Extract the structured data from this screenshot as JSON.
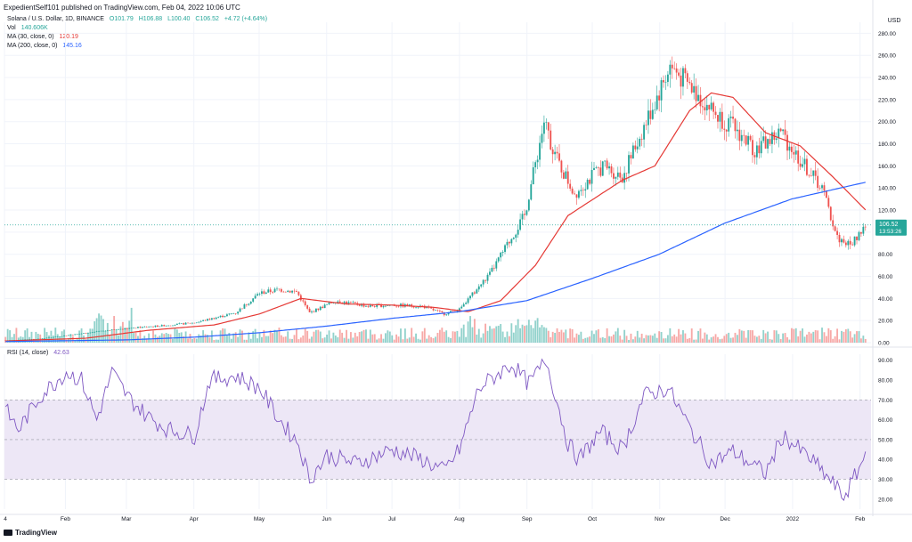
{
  "header": {
    "text": "ExpedientSelf101 published on TradingView.com, Feb 04, 2022 10:06 UTC"
  },
  "legend": {
    "symbol": "Solana / U.S. Dollar, 1D, BINANCE",
    "open": "O101.79",
    "high": "H106.88",
    "low": "L100.40",
    "close": "C106.52",
    "change": "+4.72 (+4.64%)",
    "vol_label": "Vol",
    "vol_value": "140.606K",
    "ma30_label": "MA (30, close, 0)",
    "ma30_value": "120.19",
    "ma200_label": "MA (200, close, 0)",
    "ma200_value": "145.16",
    "rsi_label": "RSI (14, close)",
    "rsi_value": "42.63"
  },
  "price_badge": {
    "price": "106.52",
    "countdown": "13:53:26"
  },
  "footer": {
    "logo_text": "TradingView"
  },
  "colors": {
    "up": "#26a69a",
    "down": "#ef5350",
    "ma30": "#e53935",
    "ma200": "#2962ff",
    "rsi": "#7e57c2",
    "rsi_band": "#ede7f6"
  },
  "chart_data": [
    {
      "type": "candlestick",
      "currency": "USD",
      "y_ticks": [
        "280.00",
        "260.00",
        "240.00",
        "220.00",
        "200.00",
        "180.00",
        "160.00",
        "140.00",
        "120.00",
        "100.00",
        "80.00",
        "60.00",
        "40.00",
        "20.00",
        "0.00"
      ],
      "ylim": [
        0,
        290
      ],
      "x_ticks": [
        "4",
        "Feb",
        "Mar",
        "Apr",
        "May",
        "Jun",
        "Jul",
        "Aug",
        "Sep",
        "Oct",
        "Nov",
        "Dec",
        "2022",
        "Feb"
      ],
      "x_tick_dates": [
        "2021-01-04",
        "2021-02-01",
        "2021-03-01",
        "2021-04-01",
        "2021-05-01",
        "2021-06-01",
        "2021-07-01",
        "2021-08-01",
        "2021-09-01",
        "2021-10-01",
        "2021-11-01",
        "2021-12-01",
        "2022-01-01",
        "2022-02-01"
      ],
      "price_close_anchors": [
        [
          "2021-01-04",
          2.0
        ],
        [
          "2021-01-20",
          3.5
        ],
        [
          "2021-02-05",
          7.5
        ],
        [
          "2021-02-20",
          11
        ],
        [
          "2021-03-01",
          13
        ],
        [
          "2021-03-15",
          15
        ],
        [
          "2021-04-01",
          18
        ],
        [
          "2021-04-20",
          27
        ],
        [
          "2021-05-01",
          45
        ],
        [
          "2021-05-10",
          48
        ],
        [
          "2021-05-18",
          46
        ],
        [
          "2021-05-24",
          27
        ],
        [
          "2021-06-05",
          38
        ],
        [
          "2021-06-20",
          33
        ],
        [
          "2021-07-01",
          34
        ],
        [
          "2021-07-15",
          33
        ],
        [
          "2021-07-25",
          26
        ],
        [
          "2021-08-01",
          30
        ],
        [
          "2021-08-15",
          62
        ],
        [
          "2021-08-31",
          115
        ],
        [
          "2021-09-09",
          200
        ],
        [
          "2021-09-15",
          165
        ],
        [
          "2021-09-23",
          135
        ],
        [
          "2021-10-06",
          160
        ],
        [
          "2021-10-15",
          150
        ],
        [
          "2021-10-25",
          195
        ],
        [
          "2021-11-06",
          250
        ],
        [
          "2021-11-15",
          232
        ],
        [
          "2021-11-28",
          205
        ],
        [
          "2021-12-05",
          195
        ],
        [
          "2021-12-15",
          175
        ],
        [
          "2021-12-27",
          190
        ],
        [
          "2022-01-05",
          165
        ],
        [
          "2022-01-15",
          140
        ],
        [
          "2022-01-22",
          95
        ],
        [
          "2022-01-28",
          88
        ],
        [
          "2022-02-04",
          106.52
        ]
      ],
      "ma30_anchors": [
        [
          "2021-01-04",
          1.5
        ],
        [
          "2021-02-10",
          4
        ],
        [
          "2021-03-10",
          11
        ],
        [
          "2021-04-10",
          16
        ],
        [
          "2021-05-01",
          26
        ],
        [
          "2021-05-20",
          40
        ],
        [
          "2021-06-10",
          35
        ],
        [
          "2021-07-01",
          34
        ],
        [
          "2021-07-20",
          32
        ],
        [
          "2021-08-05",
          28
        ],
        [
          "2021-08-20",
          38
        ],
        [
          "2021-09-05",
          70
        ],
        [
          "2021-09-20",
          115
        ],
        [
          "2021-10-15",
          147
        ],
        [
          "2021-10-30",
          160
        ],
        [
          "2021-11-15",
          210
        ],
        [
          "2021-11-25",
          226
        ],
        [
          "2021-12-05",
          222
        ],
        [
          "2021-12-20",
          190
        ],
        [
          "2022-01-05",
          178
        ],
        [
          "2022-01-20",
          150
        ],
        [
          "2022-02-04",
          120.19
        ]
      ],
      "ma200_anchors": [
        [
          "2021-01-04",
          1
        ],
        [
          "2021-03-01",
          2.5
        ],
        [
          "2021-04-01",
          5
        ],
        [
          "2021-05-01",
          9
        ],
        [
          "2021-06-01",
          15
        ],
        [
          "2021-07-01",
          22
        ],
        [
          "2021-08-01",
          28
        ],
        [
          "2021-09-01",
          38
        ],
        [
          "2021-10-01",
          58
        ],
        [
          "2021-11-01",
          80
        ],
        [
          "2021-12-01",
          108
        ],
        [
          "2022-01-01",
          130
        ],
        [
          "2022-02-04",
          145.16
        ]
      ]
    },
    {
      "type": "line",
      "name": "RSI (14, close)",
      "y_ticks": [
        "90.00",
        "80.00",
        "70.00",
        "60.00",
        "50.00",
        "40.00",
        "30.00",
        "20.00"
      ],
      "ylim": [
        15,
        93
      ],
      "band": [
        30,
        70
      ],
      "midline": 50,
      "rsi_anchors": [
        [
          "2021-01-04",
          65
        ],
        [
          "2021-01-10",
          55
        ],
        [
          "2021-01-20",
          72
        ],
        [
          "2021-02-01",
          84
        ],
        [
          "2021-02-08",
          80
        ],
        [
          "2021-02-15",
          60
        ],
        [
          "2021-02-22",
          84
        ],
        [
          "2021-03-01",
          72
        ],
        [
          "2021-03-10",
          62
        ],
        [
          "2021-03-20",
          55
        ],
        [
          "2021-04-01",
          52
        ],
        [
          "2021-04-08",
          80
        ],
        [
          "2021-04-20",
          82
        ],
        [
          "2021-05-01",
          76
        ],
        [
          "2021-05-10",
          60
        ],
        [
          "2021-05-19",
          48
        ],
        [
          "2021-05-24",
          30
        ],
        [
          "2021-06-01",
          42
        ],
        [
          "2021-06-15",
          38
        ],
        [
          "2021-07-01",
          45
        ],
        [
          "2021-07-15",
          40
        ],
        [
          "2021-07-25",
          34
        ],
        [
          "2021-08-01",
          45
        ],
        [
          "2021-08-10",
          76
        ],
        [
          "2021-08-25",
          88
        ],
        [
          "2021-09-02",
          78
        ],
        [
          "2021-09-10",
          90
        ],
        [
          "2021-09-20",
          48
        ],
        [
          "2021-09-25",
          40
        ],
        [
          "2021-10-05",
          54
        ],
        [
          "2021-10-15",
          45
        ],
        [
          "2021-10-25",
          72
        ],
        [
          "2021-11-05",
          76
        ],
        [
          "2021-11-15",
          56
        ],
        [
          "2021-11-25",
          38
        ],
        [
          "2021-12-05",
          44
        ],
        [
          "2021-12-20",
          33
        ],
        [
          "2021-12-28",
          52
        ],
        [
          "2022-01-10",
          40
        ],
        [
          "2022-01-20",
          28
        ],
        [
          "2022-01-25",
          21
        ],
        [
          "2022-01-31",
          33
        ],
        [
          "2022-02-04",
          42.63
        ]
      ]
    }
  ]
}
